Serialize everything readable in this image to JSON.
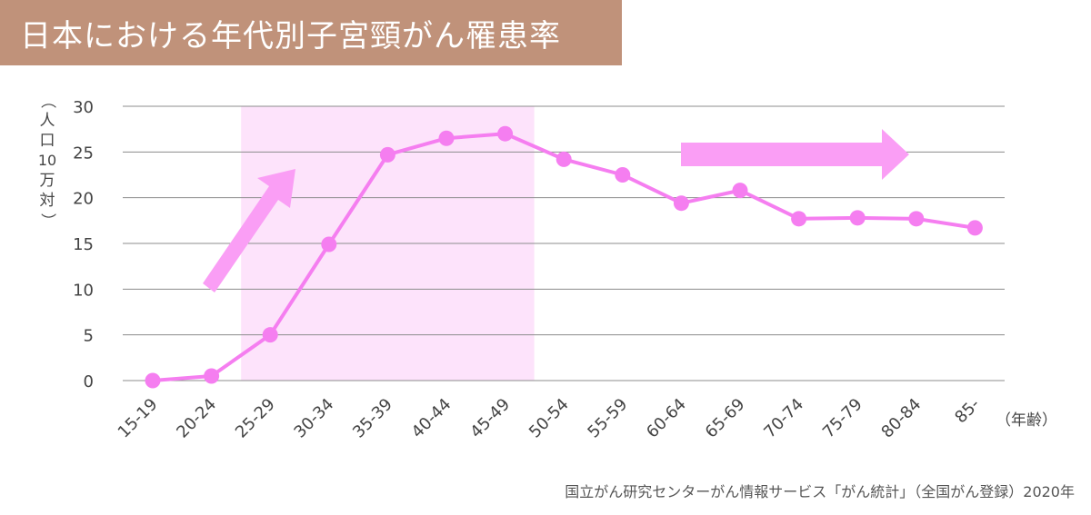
{
  "title": "日本における年代別子宮頸がん罹患率",
  "y_unit_label": {
    "open_paren": "（",
    "chars1": [
      "人",
      "口"
    ],
    "number": "10",
    "chars2": [
      "万",
      "対"
    ],
    "close_paren": "）"
  },
  "x_unit_label": "（年齢）",
  "source": "国立がん研究センターがん情報サービス「がん統計」（全国がん登録）2020年",
  "colors": {
    "title_bg": "#c0927a",
    "line": "#f57ef0",
    "marker": "#f57ef0",
    "highlight": "#fde3fb",
    "arrow": "#fa9ef5",
    "grid": "#8c8c8c"
  },
  "chart_data": {
    "type": "line",
    "categories": [
      "15-19",
      "20-24",
      "25-29",
      "30-34",
      "35-39",
      "40-44",
      "45-49",
      "50-54",
      "55-59",
      "60-64",
      "65-69",
      "70-74",
      "75-79",
      "80-84",
      "85-"
    ],
    "series": [
      {
        "values": [
          0.0,
          0.5,
          5.0,
          14.9,
          24.7,
          26.5,
          27.0,
          24.2,
          22.5,
          19.4,
          20.8,
          17.7,
          17.8,
          17.7,
          16.7
        ]
      }
    ],
    "ylim": [
      0,
      30
    ],
    "yticks": [
      0,
      5,
      10,
      15,
      20,
      25,
      30
    ],
    "grid": true,
    "highlight_range": [
      "25-29",
      "45-49"
    ],
    "arrows": [
      "up-right",
      "right"
    ]
  }
}
